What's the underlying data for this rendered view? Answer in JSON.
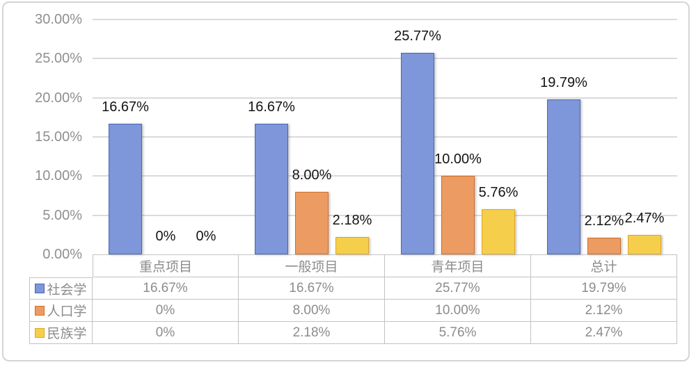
{
  "chart_data": {
    "type": "bar",
    "title": "",
    "xlabel": "",
    "ylabel": "",
    "categories": [
      "重点项目",
      "一般项目",
      "青年项目",
      "总计"
    ],
    "series": [
      {
        "name": "社会学",
        "fill_color": "#7e96da",
        "border_color": "#4a66b2",
        "values": [
          16.67,
          16.67,
          25.77,
          19.79
        ],
        "labels": [
          "16.67%",
          "16.67%",
          "25.77%",
          "19.79%"
        ]
      },
      {
        "name": "人口学",
        "fill_color": "#ec9c62",
        "border_color": "#cc6e2e",
        "values": [
          0,
          8.0,
          10.0,
          2.12
        ],
        "labels": [
          "0%",
          "8.00%",
          "10.00%",
          "2.12%"
        ]
      },
      {
        "name": "民族学",
        "fill_color": "#f5cf4b",
        "border_color": "#dca62a",
        "values": [
          0,
          2.18,
          5.76,
          2.47
        ],
        "labels": [
          "0%",
          "2.18%",
          "5.76%",
          "2.47%"
        ]
      }
    ],
    "ylim": [
      0,
      30
    ],
    "ytick_step": 5,
    "ytick_labels": [
      "30.00%",
      "25.00%",
      "20.00%",
      "15.00%",
      "10.00%",
      "5.00%",
      "0.00%"
    ],
    "grid": true,
    "legend_position": "data-table-left"
  },
  "table": {
    "column_headers": [
      "重点项目",
      "一般项目",
      "青年项目",
      "总计"
    ],
    "rows": [
      {
        "legend": "社会学",
        "swatch_fill": "#7e96da",
        "swatch_border": "#4a66b2",
        "values": [
          "16.67%",
          "16.67%",
          "25.77%",
          "19.79%"
        ]
      },
      {
        "legend": "人口学",
        "swatch_fill": "#ec9c62",
        "swatch_border": "#cc6e2e",
        "values": [
          "0%",
          "8.00%",
          "10.00%",
          "2.12%"
        ]
      },
      {
        "legend": "民族学",
        "swatch_fill": "#f5cf4b",
        "swatch_border": "#dca62a",
        "values": [
          "0%",
          "2.18%",
          "5.76%",
          "2.47%"
        ]
      }
    ]
  },
  "colors": {
    "card_border": "#d4d4d4",
    "gridline": "#dadada",
    "table_border": "#c2c2c2",
    "axis_text": "#8f8f8f",
    "data_label_text": "#141414"
  }
}
